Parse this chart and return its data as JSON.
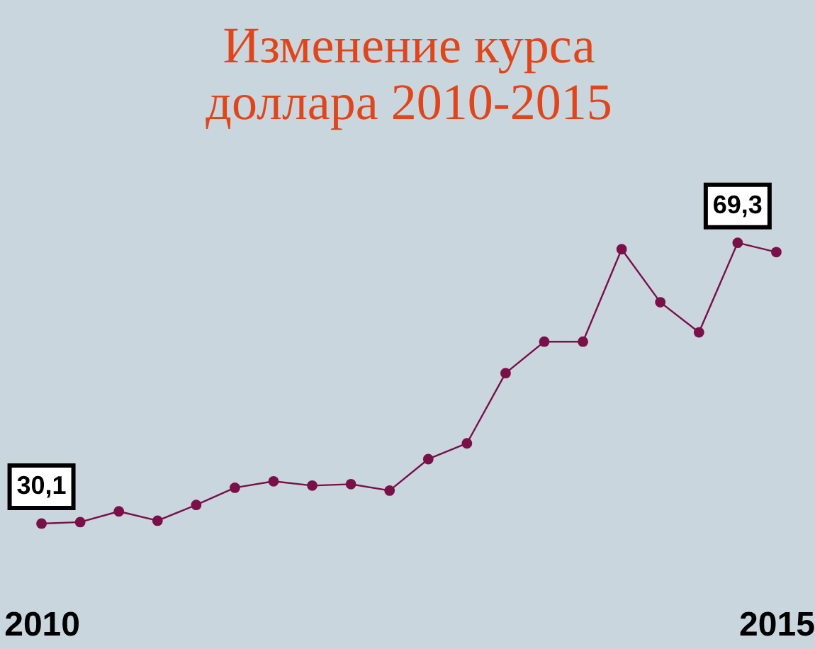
{
  "chart_data": {
    "type": "line",
    "title": [
      "Изменение курса",
      "доллара 2010-2015"
    ],
    "categories": [
      "2010",
      null,
      null,
      null,
      null,
      null,
      null,
      null,
      null,
      null,
      null,
      null,
      null,
      null,
      null,
      null,
      null,
      null,
      null,
      "2015"
    ],
    "series": [
      {
        "color": "#7a1048",
        "values": [
          30.1,
          30.3,
          31.8,
          30.5,
          32.7,
          35.1,
          36.0,
          35.4,
          35.6,
          34.7,
          39.1,
          41.3,
          51.1,
          55.5,
          55.5,
          68.4,
          61.0,
          56.8,
          69.3,
          68.0
        ],
        "value_labels": [
          "30,1",
          null,
          null,
          null,
          null,
          null,
          null,
          null,
          null,
          null,
          null,
          null,
          null,
          null,
          null,
          null,
          null,
          null,
          "69,3",
          null
        ]
      }
    ],
    "marker": "circle",
    "line_style": "solid",
    "grid": false,
    "tick_labels": "x"
  }
}
